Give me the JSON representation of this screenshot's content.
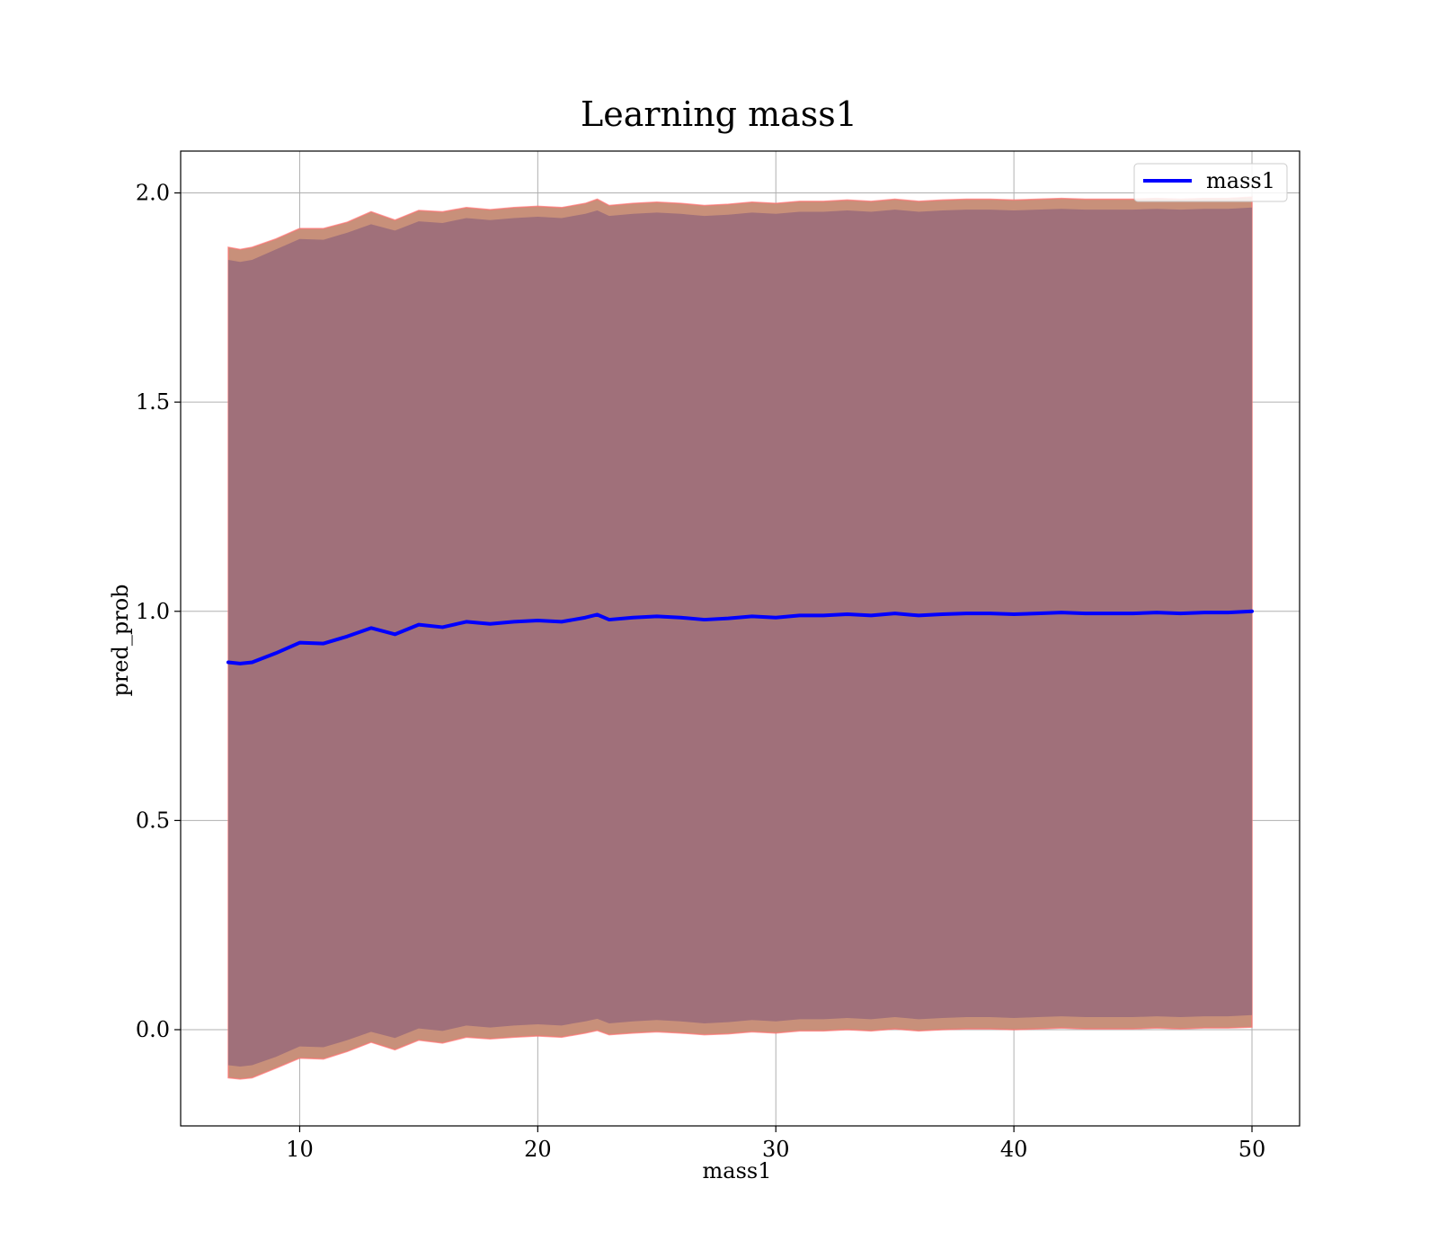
{
  "chart_data": {
    "type": "area",
    "title": "Learning mass1",
    "xlabel": "mass1",
    "ylabel": "pred_prob",
    "xlim": [
      5,
      52
    ],
    "ylim": [
      -0.23,
      2.1
    ],
    "x_ticks": [
      10,
      20,
      30,
      40,
      50
    ],
    "x_tick_labels": [
      "10",
      "20",
      "30",
      "40",
      "50"
    ],
    "y_ticks": [
      0.0,
      0.5,
      1.0,
      1.5,
      2.0
    ],
    "y_tick_labels": [
      "0.0",
      "0.5",
      "1.0",
      "1.5",
      "2.0"
    ],
    "grid": true,
    "legend": {
      "position": "top-right",
      "entries": [
        "mass1"
      ]
    },
    "colors": {
      "line": "#0000ff",
      "outer_band": "#c8907a",
      "outer_band_edge": "#ff7070",
      "inner_band": "#a0707a"
    },
    "x": [
      7.0,
      7.5,
      8.0,
      9.0,
      10.0,
      11.0,
      12.0,
      13.0,
      14.0,
      15.0,
      16.0,
      17.0,
      18.0,
      19.0,
      20.0,
      21.0,
      22.0,
      22.5,
      23.0,
      24.0,
      25.0,
      26.0,
      27.0,
      28.0,
      29.0,
      30.0,
      31.0,
      32.0,
      33.0,
      34.0,
      35.0,
      36.0,
      37.0,
      38.0,
      39.0,
      40.0,
      41.0,
      42.0,
      43.0,
      44.0,
      45.0,
      46.0,
      47.0,
      48.0,
      49.0,
      50.0
    ],
    "series": [
      {
        "name": "mass1",
        "y": [
          0.878,
          0.875,
          0.878,
          0.9,
          0.925,
          0.923,
          0.94,
          0.96,
          0.945,
          0.968,
          0.962,
          0.975,
          0.97,
          0.975,
          0.978,
          0.975,
          0.985,
          0.992,
          0.98,
          0.985,
          0.988,
          0.985,
          0.98,
          0.983,
          0.988,
          0.985,
          0.99,
          0.99,
          0.993,
          0.99,
          0.995,
          0.99,
          0.993,
          0.995,
          0.995,
          0.993,
          0.995,
          0.997,
          0.995,
          0.995,
          0.995,
          0.997,
          0.995,
          0.997,
          0.997,
          1.0
        ]
      }
    ],
    "outer_band": {
      "upper": [
        1.87,
        1.865,
        1.87,
        1.89,
        1.915,
        1.915,
        1.93,
        1.955,
        1.935,
        1.958,
        1.955,
        1.965,
        1.96,
        1.965,
        1.968,
        1.965,
        1.975,
        1.985,
        1.97,
        1.975,
        1.978,
        1.975,
        1.97,
        1.973,
        1.978,
        1.975,
        1.98,
        1.98,
        1.983,
        1.98,
        1.985,
        1.98,
        1.983,
        1.985,
        1.985,
        1.983,
        1.985,
        1.987,
        1.985,
        1.985,
        1.985,
        1.987,
        1.985,
        1.987,
        1.987,
        1.99
      ],
      "lower": [
        -0.115,
        -0.118,
        -0.115,
        -0.092,
        -0.068,
        -0.07,
        -0.052,
        -0.03,
        -0.048,
        -0.025,
        -0.032,
        -0.018,
        -0.022,
        -0.018,
        -0.015,
        -0.018,
        -0.008,
        -0.002,
        -0.012,
        -0.008,
        -0.005,
        -0.008,
        -0.012,
        -0.01,
        -0.005,
        -0.008,
        -0.003,
        -0.003,
        0.0,
        -0.003,
        0.002,
        -0.003,
        0.0,
        0.002,
        0.002,
        0.0,
        0.002,
        0.004,
        0.002,
        0.002,
        0.002,
        0.004,
        0.002,
        0.004,
        0.004,
        0.006
      ]
    },
    "inner_band": {
      "upper": [
        1.84,
        1.835,
        1.84,
        1.865,
        1.89,
        1.888,
        1.905,
        1.925,
        1.91,
        1.932,
        1.928,
        1.94,
        1.935,
        1.94,
        1.943,
        1.94,
        1.95,
        1.958,
        1.945,
        1.95,
        1.953,
        1.95,
        1.945,
        1.948,
        1.953,
        1.95,
        1.955,
        1.955,
        1.958,
        1.955,
        1.96,
        1.955,
        1.958,
        1.96,
        1.96,
        1.958,
        1.96,
        1.962,
        1.96,
        1.96,
        1.96,
        1.962,
        1.96,
        1.962,
        1.962,
        1.965
      ],
      "lower": [
        -0.085,
        -0.088,
        -0.085,
        -0.065,
        -0.04,
        -0.042,
        -0.025,
        -0.005,
        -0.02,
        0.003,
        -0.003,
        0.01,
        0.005,
        0.01,
        0.013,
        0.01,
        0.02,
        0.026,
        0.015,
        0.02,
        0.023,
        0.02,
        0.015,
        0.018,
        0.023,
        0.02,
        0.025,
        0.025,
        0.028,
        0.025,
        0.03,
        0.025,
        0.028,
        0.03,
        0.03,
        0.028,
        0.03,
        0.032,
        0.03,
        0.03,
        0.03,
        0.032,
        0.03,
        0.032,
        0.032,
        0.035
      ]
    }
  }
}
